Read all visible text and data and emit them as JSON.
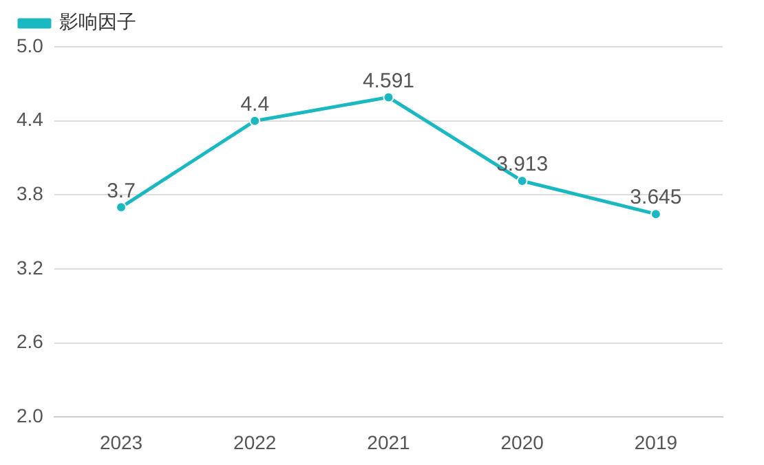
{
  "chart_data": {
    "type": "line",
    "categories": [
      "2023",
      "2022",
      "2021",
      "2020",
      "2019"
    ],
    "series": [
      {
        "name": "影响因子",
        "color": "#1cb8c2",
        "values": [
          3.7,
          4.4,
          4.591,
          3.913,
          3.645
        ]
      }
    ],
    "ylim": [
      2,
      5
    ],
    "yticks": [
      {
        "value": 2,
        "label": "2.0"
      },
      {
        "value": 2.6,
        "label": "2.6"
      },
      {
        "value": 3.2,
        "label": "3.2"
      },
      {
        "value": 3.8,
        "label": "3.8"
      },
      {
        "value": 4.4,
        "label": "4.4"
      },
      {
        "value": 5,
        "label": "5.0"
      }
    ],
    "grid": "y",
    "legend": "top left",
    "marker": "circle",
    "line_style": "solid",
    "data_labels": true
  }
}
